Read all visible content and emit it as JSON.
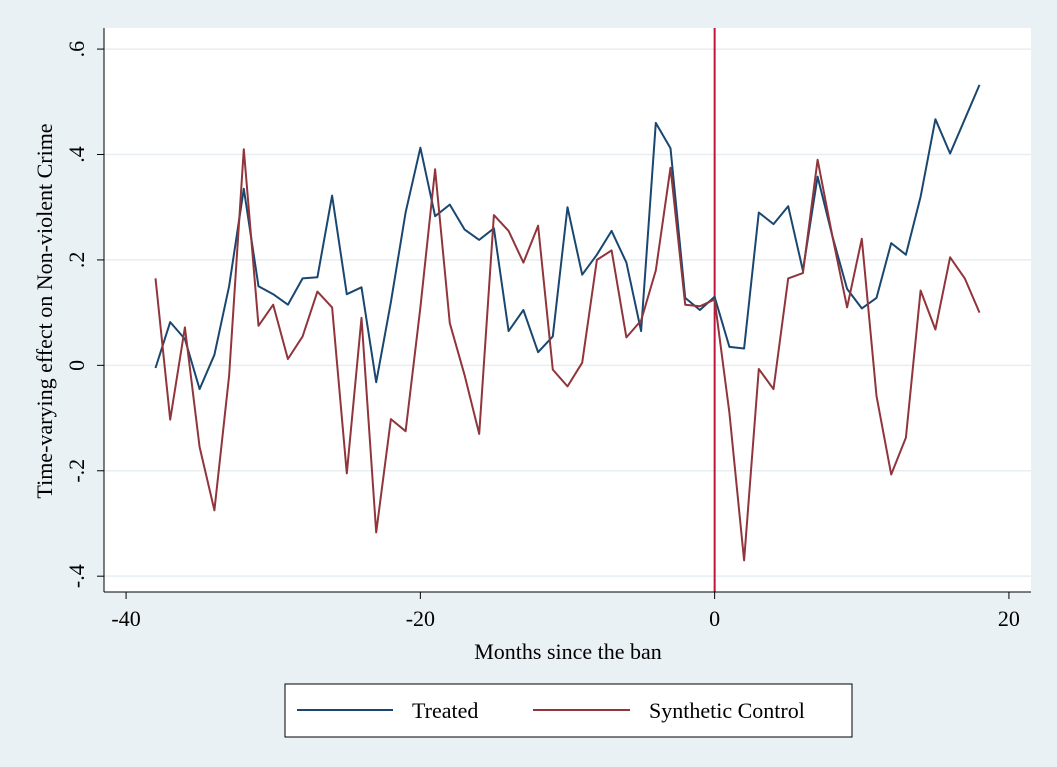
{
  "chart_data": {
    "type": "line",
    "xlabel": "Months since the ban",
    "ylabel": "Time-varying effect on Non-violent Crime",
    "xlim": [
      -40,
      20
    ],
    "ylim": [
      -0.4,
      0.6
    ],
    "xticks": [
      {
        "value": -40,
        "label": "-40"
      },
      {
        "value": -20,
        "label": "-20"
      },
      {
        "value": 0,
        "label": "0"
      },
      {
        "value": 20,
        "label": "20"
      }
    ],
    "yticks": [
      {
        "value": -0.4,
        "label": "-.4"
      },
      {
        "value": -0.2,
        "label": "-.2"
      },
      {
        "value": 0,
        "label": "0"
      },
      {
        "value": 0.2,
        "label": ".2"
      },
      {
        "value": 0.4,
        "label": ".4"
      },
      {
        "value": 0.6,
        "label": ".6"
      }
    ],
    "grid": true,
    "vline": {
      "x": 0,
      "color": "#c0143c"
    },
    "legend_position": "bottom",
    "x": [
      -38,
      -37,
      -36,
      -35,
      -34,
      -33,
      -32,
      -31,
      -30,
      -29,
      -28,
      -27,
      -26,
      -25,
      -24,
      -23,
      -22,
      -21,
      -20,
      -19,
      -18,
      -17,
      -16,
      -15,
      -14,
      -13,
      -12,
      -11,
      -10,
      -9,
      -8,
      -7,
      -6,
      -5,
      -4,
      -3,
      -2,
      -1,
      0,
      1,
      2,
      3,
      4,
      5,
      6,
      7,
      8,
      9,
      10,
      11,
      12,
      13,
      14,
      15,
      16,
      17,
      18
    ],
    "series": [
      {
        "name": "Treated",
        "color": "#1a476f",
        "values": [
          -0.005,
          0.082,
          0.05,
          -0.045,
          0.02,
          0.15,
          0.335,
          0.15,
          0.135,
          0.115,
          0.165,
          0.167,
          0.322,
          0.135,
          0.148,
          -0.032,
          0.12,
          0.29,
          0.413,
          0.283,
          0.305,
          0.258,
          0.238,
          0.26,
          0.065,
          0.105,
          0.025,
          0.055,
          0.3,
          0.172,
          0.21,
          0.255,
          0.195,
          0.065,
          0.46,
          0.412,
          0.128,
          0.105,
          0.13,
          0.035,
          0.032,
          0.29,
          0.268,
          0.302,
          0.18,
          0.358,
          0.245,
          0.145,
          0.108,
          0.128,
          0.232,
          0.21,
          0.32,
          0.467,
          0.402,
          0.467,
          0.532
        ]
      },
      {
        "name": "Synthetic Control",
        "color": "#90353b",
        "values": [
          0.165,
          -0.103,
          0.072,
          -0.155,
          -0.275,
          -0.02,
          0.41,
          0.075,
          0.115,
          0.012,
          0.055,
          0.14,
          0.11,
          -0.205,
          0.09,
          -0.317,
          -0.102,
          -0.125,
          0.11,
          0.372,
          0.08,
          -0.018,
          -0.13,
          0.285,
          0.255,
          0.195,
          0.265,
          -0.008,
          -0.04,
          0.005,
          0.2,
          0.218,
          0.053,
          0.085,
          0.18,
          0.375,
          0.115,
          0.112,
          0.125,
          -0.09,
          -0.37,
          -0.007,
          -0.045,
          0.165,
          0.175,
          0.39,
          0.245,
          0.11,
          0.24,
          -0.058,
          -0.207,
          -0.137,
          0.142,
          0.068,
          0.205,
          0.165,
          0.1
        ]
      }
    ]
  }
}
